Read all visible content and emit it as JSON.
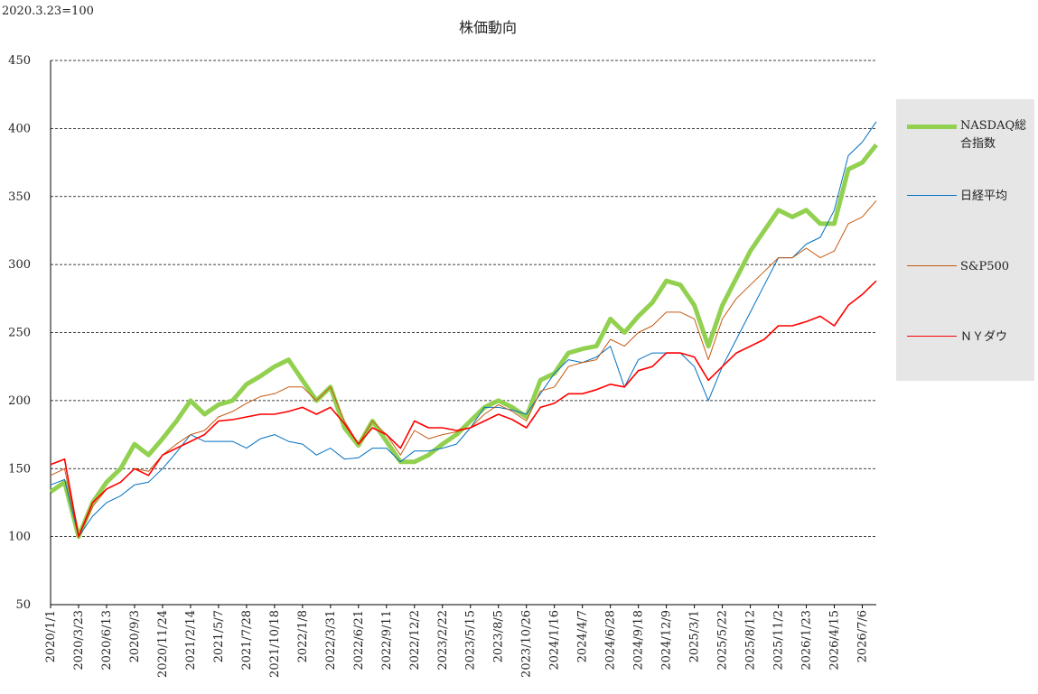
{
  "chart_data": {
    "type": "line",
    "title": "株価動向",
    "subtitle": "2020.3.23=100",
    "categories": [
      "2020/1/1",
      null,
      "2020/3/23",
      null,
      "2020/6/13",
      null,
      "2020/9/3",
      null,
      "2020/11/24",
      null,
      "2021/2/14",
      null,
      "2021/5/7",
      null,
      "2021/7/28",
      null,
      "2021/10/18",
      null,
      "2022/1/8",
      null,
      "2022/3/31",
      null,
      "2022/6/21",
      null,
      "2022/9/11",
      null,
      "2022/12/2",
      null,
      "2023/2/22",
      null,
      "2023/5/15",
      null,
      "2023/8/5",
      null,
      "2023/10/26",
      null,
      "2024/1/16",
      null,
      "2024/4/7",
      null,
      "2024/6/28",
      null,
      "2024/9/18",
      null,
      "2024/12/9",
      null,
      "2025/3/1",
      null,
      "2025/5/22",
      null,
      "2025/8/12",
      null,
      "2025/11/2",
      null,
      "2026/1/23",
      null,
      "2026/4/15",
      null,
      "2026/7/6",
      null
    ],
    "series": [
      {
        "name": "NASDAQ総合指数",
        "color": "#92d050",
        "width": 5,
        "values": [
          133,
          140,
          100,
          125,
          140,
          150,
          168,
          160,
          172,
          185,
          200,
          190,
          197,
          200,
          212,
          218,
          225,
          230,
          215,
          200,
          210,
          180,
          167,
          185,
          170,
          155,
          155,
          160,
          168,
          175,
          185,
          195,
          200,
          195,
          188,
          215,
          220,
          235,
          238,
          240,
          260,
          250,
          262,
          272,
          288,
          285,
          270,
          240,
          270,
          290,
          310,
          325,
          340,
          335,
          340,
          330,
          330,
          370,
          375,
          388
        ]
      },
      {
        "name": "日経平均",
        "color": "#0070c0",
        "width": 1,
        "values": [
          138,
          142,
          100,
          115,
          125,
          130,
          138,
          140,
          150,
          162,
          175,
          170,
          170,
          170,
          165,
          172,
          175,
          170,
          168,
          160,
          165,
          157,
          158,
          165,
          165,
          155,
          163,
          163,
          165,
          168,
          180,
          195,
          195,
          193,
          190,
          205,
          220,
          230,
          228,
          232,
          240,
          210,
          230,
          235,
          235,
          235,
          225,
          200,
          225,
          245,
          265,
          285,
          305,
          305,
          315,
          320,
          340,
          380,
          390,
          405
        ]
      },
      {
        "name": "S&P500",
        "color": "#c55a11",
        "width": 1,
        "values": [
          145,
          150,
          100,
          122,
          135,
          140,
          150,
          148,
          160,
          168,
          175,
          178,
          188,
          192,
          198,
          203,
          205,
          210,
          210,
          200,
          210,
          185,
          168,
          185,
          175,
          160,
          178,
          172,
          175,
          177,
          180,
          190,
          197,
          192,
          185,
          207,
          210,
          225,
          228,
          230,
          245,
          240,
          250,
          255,
          265,
          265,
          260,
          230,
          260,
          275,
          285,
          295,
          305,
          305,
          312,
          305,
          310,
          330,
          335,
          347
        ]
      },
      {
        "name": "ＮＹダウ",
        "color": "#ff0000",
        "width": 1.6,
        "values": [
          153,
          157,
          100,
          125,
          135,
          140,
          150,
          145,
          160,
          165,
          170,
          175,
          185,
          186,
          188,
          190,
          190,
          192,
          195,
          190,
          195,
          183,
          168,
          180,
          175,
          165,
          185,
          180,
          180,
          178,
          180,
          185,
          190,
          186,
          180,
          195,
          198,
          205,
          205,
          208,
          212,
          210,
          222,
          225,
          235,
          235,
          232,
          215,
          225,
          235,
          240,
          245,
          255,
          255,
          258,
          262,
          255,
          270,
          278,
          288
        ]
      }
    ],
    "ylim": [
      50,
      450
    ],
    "yticks": [
      50,
      100,
      150,
      200,
      250,
      300,
      350,
      400,
      450
    ],
    "grid": true
  }
}
